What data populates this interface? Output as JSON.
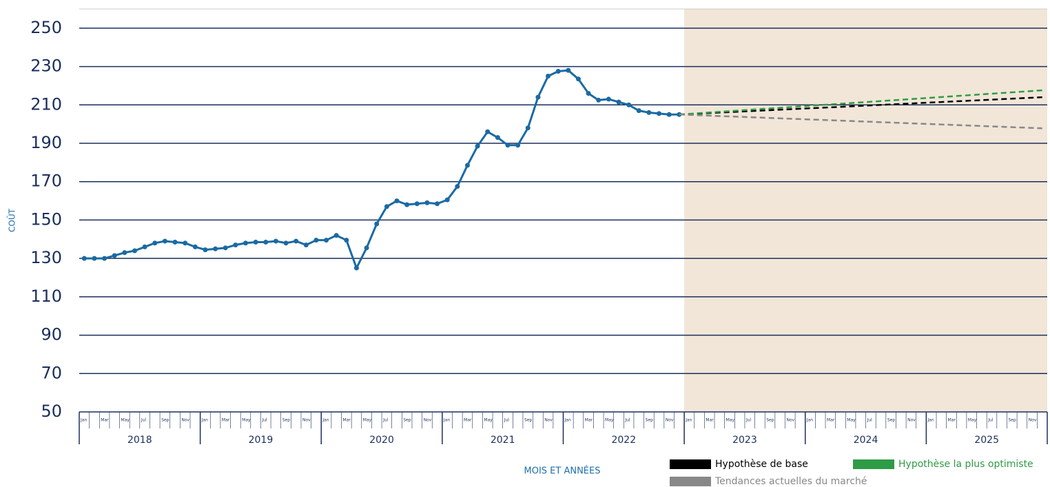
{
  "chart_data": {
    "type": "line",
    "y_label": "COÛT",
    "x_label": "MOIS ET ANNÉES",
    "categories": [
      "Jan",
      null,
      "Mar",
      null,
      "May",
      null,
      "Jul",
      null,
      "Sep",
      null,
      "Nov",
      null,
      "Jan",
      null,
      "Mar",
      null,
      "May",
      null,
      "Jul",
      null,
      "Sep",
      null,
      "Nov",
      null,
      "Jan",
      null,
      "Mar",
      null,
      "May",
      null,
      "Jul",
      null,
      "Sep",
      null,
      "Nov",
      null,
      "Jan",
      null,
      "Mar",
      null,
      "May",
      null,
      "Jul",
      null,
      "Sep",
      null,
      "Nov",
      null,
      "Jan",
      null,
      "Mar",
      null,
      "May",
      null,
      "Jul",
      null,
      "Sep",
      null,
      "Nov",
      null,
      "Jan",
      null,
      "Mar",
      null,
      "May",
      null,
      "Jul",
      null,
      "Sep",
      null,
      "Nov",
      null,
      "Jan",
      null,
      "Mar",
      null,
      "May",
      null,
      "Jul",
      null,
      "Sep",
      null,
      "Nov",
      null,
      "Jan",
      null,
      "Mar",
      null,
      "May",
      null,
      "Jul",
      null,
      "Sep",
      null,
      "Nov",
      null
    ],
    "year_labels": [
      "2018",
      "2019",
      "2020",
      "2021",
      "2022",
      "2023",
      "2024",
      "2025"
    ],
    "ylim": [
      50,
      260
    ],
    "yticks": [
      50,
      70,
      90,
      110,
      130,
      150,
      170,
      190,
      210,
      230,
      250
    ],
    "grid": true,
    "series": [
      {
        "color": "#1a6aa3",
        "dashed": false,
        "markers": true,
        "values": [
          130,
          130,
          130,
          131.5,
          133,
          134,
          136,
          138,
          139,
          138.5,
          138,
          136,
          134.5,
          135,
          135.5,
          137,
          138,
          138.5,
          138.5,
          139,
          138,
          139,
          137,
          139.5,
          139.5,
          142,
          139.5,
          125,
          135.5,
          148,
          157,
          160,
          158,
          158.5,
          159,
          158.5,
          160.5,
          167.5,
          178.5,
          188.5,
          196,
          193,
          189,
          189,
          198,
          214,
          225,
          227.5,
          228,
          223.5,
          216,
          212.5,
          213,
          211.5,
          210,
          207,
          206,
          205.5,
          205,
          205,
          null,
          null,
          null,
          null,
          null,
          null,
          null,
          null,
          null,
          null,
          null,
          null,
          null,
          null,
          null,
          null,
          null,
          null,
          null,
          null,
          null,
          null,
          null,
          null,
          null,
          null,
          null,
          null,
          null,
          null,
          null,
          null,
          null,
          null,
          null,
          null
        ]
      },
      {
        "name": "Hypothèse de base",
        "color": "#000000",
        "dashed": true,
        "markers": false,
        "values": [
          null,
          null,
          null,
          null,
          null,
          null,
          null,
          null,
          null,
          null,
          null,
          null,
          null,
          null,
          null,
          null,
          null,
          null,
          null,
          null,
          null,
          null,
          null,
          null,
          null,
          null,
          null,
          null,
          null,
          null,
          null,
          null,
          null,
          null,
          null,
          null,
          null,
          null,
          null,
          null,
          null,
          null,
          null,
          null,
          null,
          null,
          null,
          null,
          null,
          null,
          null,
          null,
          null,
          null,
          null,
          null,
          null,
          null,
          null,
          205,
          205.25,
          205.5,
          205.75,
          206,
          206.25,
          206.5,
          206.75,
          207,
          207.25,
          207.5,
          207.75,
          208,
          208.25,
          208.5,
          208.75,
          209,
          209.25,
          209.5,
          209.75,
          210,
          210.25,
          210.5,
          210.75,
          211,
          211.25,
          211.5,
          211.75,
          212,
          212.25,
          212.5,
          212.75,
          213,
          213.25,
          213.5,
          213.75,
          214
        ]
      },
      {
        "name": "Hypothèse la plus optimiste",
        "color": "#2e9b46",
        "dashed": true,
        "markers": false,
        "values": [
          null,
          null,
          null,
          null,
          null,
          null,
          null,
          null,
          null,
          null,
          null,
          null,
          null,
          null,
          null,
          null,
          null,
          null,
          null,
          null,
          null,
          null,
          null,
          null,
          null,
          null,
          null,
          null,
          null,
          null,
          null,
          null,
          null,
          null,
          null,
          null,
          null,
          null,
          null,
          null,
          null,
          null,
          null,
          null,
          null,
          null,
          null,
          null,
          null,
          null,
          null,
          null,
          null,
          null,
          null,
          null,
          null,
          null,
          null,
          205,
          205.35,
          205.7,
          206.05,
          206.4,
          206.75,
          207.1,
          207.45,
          207.8,
          208.15,
          208.5,
          208.85,
          209.2,
          209.55,
          209.9,
          210.25,
          210.6,
          210.95,
          211.3,
          211.65,
          212,
          212.35,
          212.7,
          213.05,
          213.4,
          213.75,
          214.1,
          214.45,
          214.8,
          215.15,
          215.5,
          215.85,
          216.2,
          216.55,
          216.9,
          217.25,
          217.6
        ]
      },
      {
        "name": "Tendances actuelles du marché",
        "color": "#888888",
        "dashed": true,
        "markers": false,
        "values": [
          null,
          null,
          null,
          null,
          null,
          null,
          null,
          null,
          null,
          null,
          null,
          null,
          null,
          null,
          null,
          null,
          null,
          null,
          null,
          null,
          null,
          null,
          null,
          null,
          null,
          null,
          null,
          null,
          null,
          null,
          null,
          null,
          null,
          null,
          null,
          null,
          null,
          null,
          null,
          null,
          null,
          null,
          null,
          null,
          null,
          null,
          null,
          null,
          null,
          null,
          null,
          null,
          null,
          null,
          null,
          null,
          null,
          null,
          null,
          205,
          204.8,
          204.6,
          204.4,
          204.2,
          204,
          203.8,
          203.6,
          203.4,
          203.2,
          203,
          202.8,
          202.6,
          202.4,
          202.2,
          202,
          201.8,
          201.6,
          201.4,
          201.2,
          201,
          200.8,
          200.6,
          200.4,
          200.2,
          200,
          199.8,
          199.6,
          199.4,
          199.2,
          199,
          198.8,
          198.6,
          198.4,
          198.2,
          198,
          197.8
        ]
      }
    ]
  }
}
